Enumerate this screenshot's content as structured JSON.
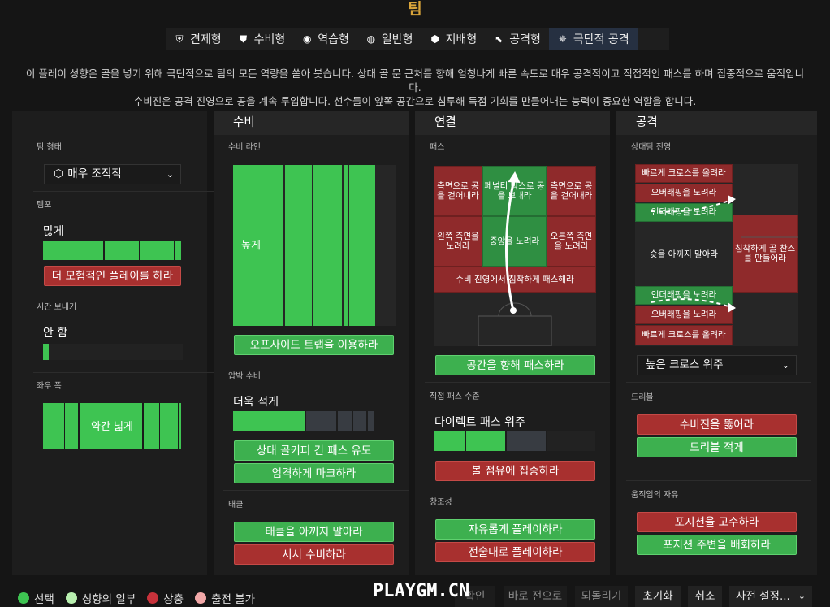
{
  "header": {
    "title": "팀"
  },
  "tabs": [
    {
      "label": "견제형",
      "icon": "shield-swords-icon"
    },
    {
      "label": "수비형",
      "icon": "shield-icon"
    },
    {
      "label": "역습형",
      "icon": "counter-icon"
    },
    {
      "label": "일반형",
      "icon": "balanced-icon"
    },
    {
      "label": "지배형",
      "icon": "control-icon"
    },
    {
      "label": "공격형",
      "icon": "arrow-attack-icon"
    },
    {
      "label": "극단적 공격",
      "icon": "extreme-attack-icon",
      "active": true
    }
  ],
  "description": {
    "line1": "이 플레이 성향은 골을 넣기 위해 극단적으로 팀의 모든 역량을 쏟아 붓습니다. 상대 골 문 근처를 향해 엄청나게 빠른 속도로 매우 공격적이고 직접적인 패스를 하며 집중적으로 움직입니다.",
    "line2": "수비진은 공격 진영으로 공을 계속 투입합니다. 선수들이 앞쪽 공간으로 침투해 득점 기회를 만들어내는 능력이 중요한 역할을 합니다."
  },
  "team": {
    "shape_label": "팀 형태",
    "shape_value": "매우 조직적",
    "tempo_label": "템포",
    "tempo_value": "많게",
    "tempo_level": 0.8,
    "tempo_button": "더 모험적인 플레이를 하라",
    "time_label": "시간 보내기",
    "time_value": "안 함",
    "width_label": "좌우 폭",
    "width_value": "약간 넓게"
  },
  "defense": {
    "title": "수비",
    "line_label": "수비 라인",
    "line_value": "높게",
    "offside_button": "오프사이드 트랩을 이용하라",
    "press_label": "압박 수비",
    "press_value": "더욱 적게",
    "press_level": 0.35,
    "gk_button": "상대 골키퍼 긴 패스 유도",
    "mark_button": "엄격하게 마크하라",
    "tackle_label": "태클",
    "tackle_button": "태클을 아끼지 말아라",
    "stand_button": "서서 수비하라"
  },
  "connect": {
    "title": "연결",
    "pass_label": "패스",
    "cells": {
      "tl": "측면으로 공을 걷어내라",
      "tc": "페널티 박스로 공을 보내라",
      "tr": "측면으로 공을 걷어내라",
      "ml": "왼쪽 측면을 노려라",
      "mc": "중앙을 노려라",
      "mr": "오른쪽 측면을 노려라",
      "bottom": "수비 진영에서 침착하게 패스해라"
    },
    "space_button": "공간을 향해 패스하라",
    "direct_label": "직접 패스 수준",
    "direct_value": "다이렉트 패스 위주",
    "direct_level": 0.6,
    "possession_button": "볼 점유에 집중하라",
    "creativity_label": "창조성",
    "free_button": "자유롭게 플레이하라",
    "tactic_button": "전술대로 플레이하라"
  },
  "attack": {
    "title": "공격",
    "zone_label": "상대팀 진영",
    "cells": {
      "cross1": "빠르게 크로스를 올려라",
      "overlap1": "오버래핑을 노려라",
      "under1": "언더래핑을 노려라",
      "center": "슛을 아끼지 말아라",
      "right": "침착하게 골 찬스를 만들어라",
      "under2": "언더래핑을 노려라",
      "overlap2": "오버래핑을 노려라",
      "cross2": "빠르게 크로스를 올려라"
    },
    "cross_value": "높은 크로스 위주",
    "dribble_label": "드리블",
    "break_button": "수비진을 뚫어라",
    "dribble_less_button": "드리블 적게",
    "freedom_label": "움직임의 자유",
    "hold_button": "포지션을 고수하라",
    "roam_button": "포지션 주변을 배회하라"
  },
  "legend": {
    "selected": "선택",
    "part": "성향의 일부",
    "conflict": "상충",
    "unavailable": "출전 불가",
    "colors": {
      "selected": "#3ec452",
      "part": "#b9f0b0",
      "conflict": "#c8323b",
      "unavailable": "#f2a8a8"
    }
  },
  "actions": {
    "confirm": "확인",
    "prev": "바로 전으로",
    "undo": "되돌리기",
    "reset": "초기화",
    "cancel": "취소",
    "preset": "사전 설정..."
  },
  "watermark": "PLAYGM.CN"
}
